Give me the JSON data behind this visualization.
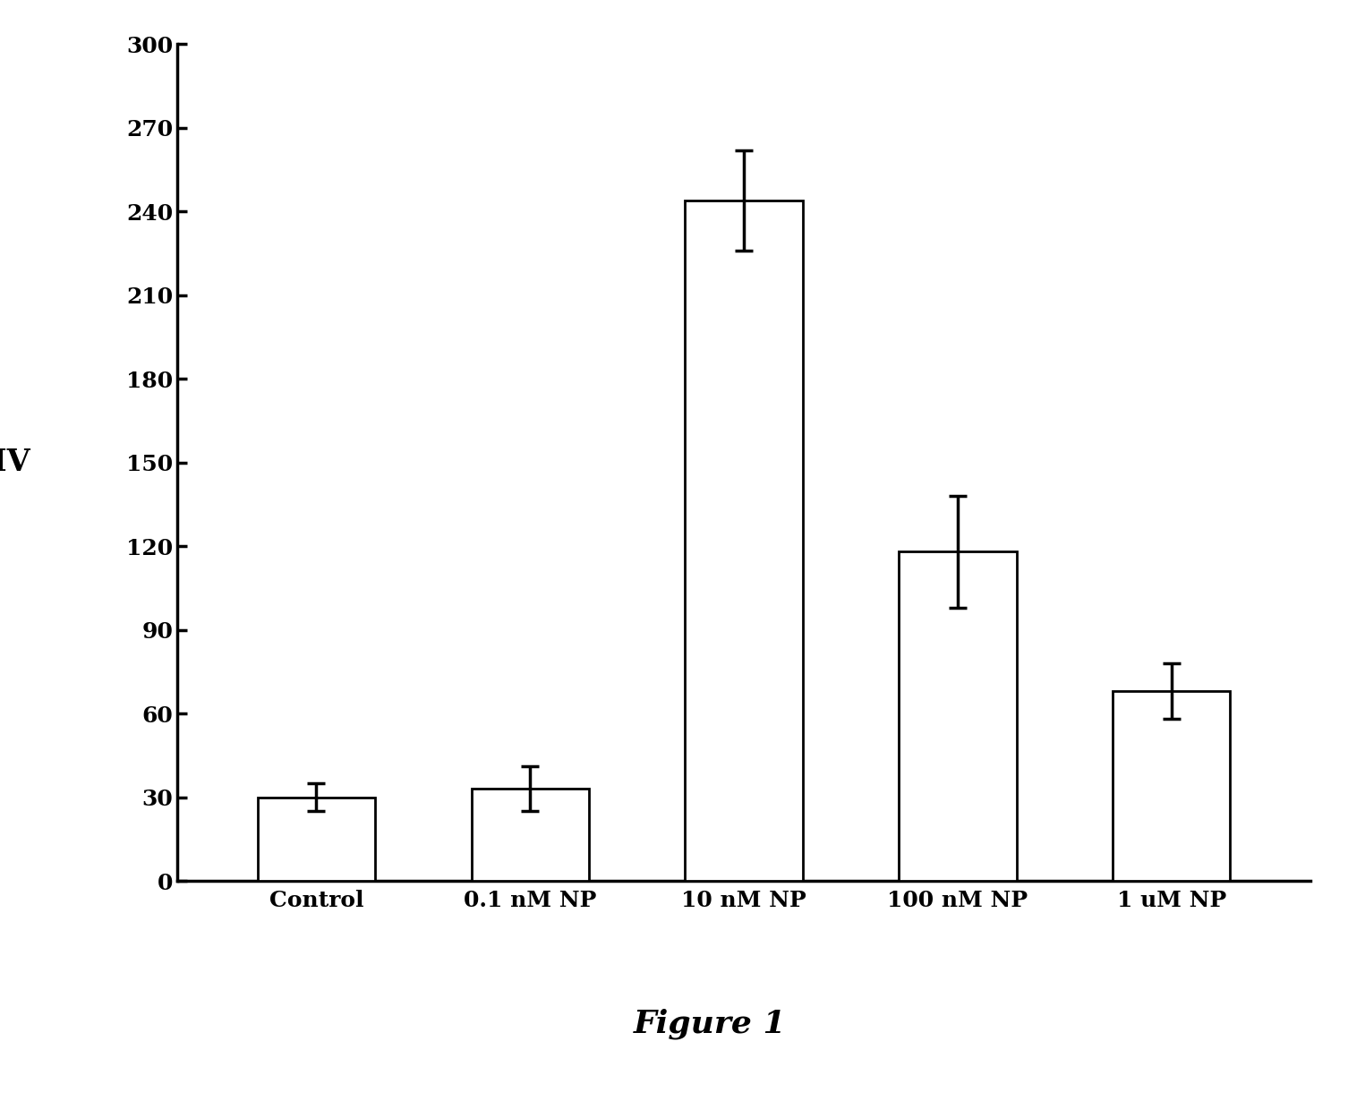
{
  "categories": [
    "Control",
    "0.1 nM NP",
    "10 nM NP",
    "100 nM NP",
    "1 uM NP"
  ],
  "values": [
    30,
    33,
    244,
    118,
    68
  ],
  "errors": [
    5,
    8,
    18,
    20,
    10
  ],
  "ylabel": "DIV",
  "ylabel_ypos": 150,
  "ylim": [
    0,
    300
  ],
  "yticks": [
    0,
    30,
    60,
    90,
    120,
    150,
    180,
    210,
    240,
    270,
    300
  ],
  "figure_label": "Figure 1",
  "bar_color": "#ffffff",
  "bar_edgecolor": "#000000",
  "background_color": "#ffffff",
  "bar_linewidth": 2.0,
  "error_capsize": 7,
  "error_linewidth": 2.5,
  "ylabel_fontsize": 24,
  "xlabel_fontsize": 18,
  "tick_fontsize": 18,
  "figure_label_fontsize": 26,
  "axis_linewidth": 2.5
}
